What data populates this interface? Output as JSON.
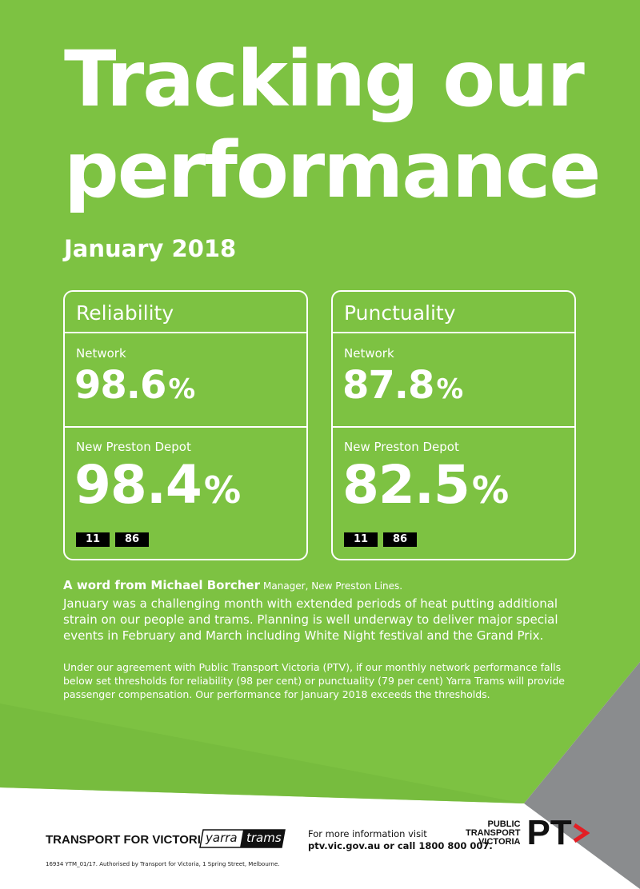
{
  "title": "Tracking our performance",
  "period": "January 2018",
  "colors": {
    "brand_green": "#7dc242",
    "route_badge": "#000000",
    "pt_red": "#e31e24",
    "footer_grey": "#8a8c8e"
  },
  "reliability": {
    "heading": "Reliability",
    "network_label": "Network",
    "network_value": "98.6",
    "depot_label": "New Preston Depot",
    "depot_value": "98.4",
    "routes": [
      "11",
      "86"
    ]
  },
  "punctuality": {
    "heading": "Punctuality",
    "network_label": "Network",
    "network_value": "87.8",
    "depot_label": "New Preston Depot",
    "depot_value": "82.5",
    "routes": [
      "11",
      "86"
    ]
  },
  "percent_sign": "%",
  "word": {
    "intro": "A word from Michael Borcher",
    "role": "Manager, New Preston Lines.",
    "body": "January was a challenging month with extended periods of heat putting additional strain on our people and trams. Planning is well underway to deliver major special events in February and March including White Night festival and the Grand Prix."
  },
  "fine_print": "Under our agreement with Public Transport Victoria (PTV), if our monthly network performance falls below set thresholds for reliability (98 per cent) or punctuality (79 per cent) Yarra Trams will provide passenger compensation. Our performance for January 2018 exceeds the thresholds.",
  "footer": {
    "tfv_logo": "TRANSPORT FOR VICTORIA",
    "yarra_logo_left": "yarra",
    "yarra_logo_right": "trams",
    "info_line1": "For more information visit",
    "info_line2": "ptv.vic.gov.au or call 1800 800 007.",
    "ptv_line1": "PUBLIC",
    "ptv_line2": "TRANSPORT",
    "ptv_line3": "VICTORIA",
    "ptv_mark": "PT",
    "authorisation": "16934 YTM_01/17. Authorised by Transport for Victoria, 1 Spring Street, Melbourne."
  }
}
